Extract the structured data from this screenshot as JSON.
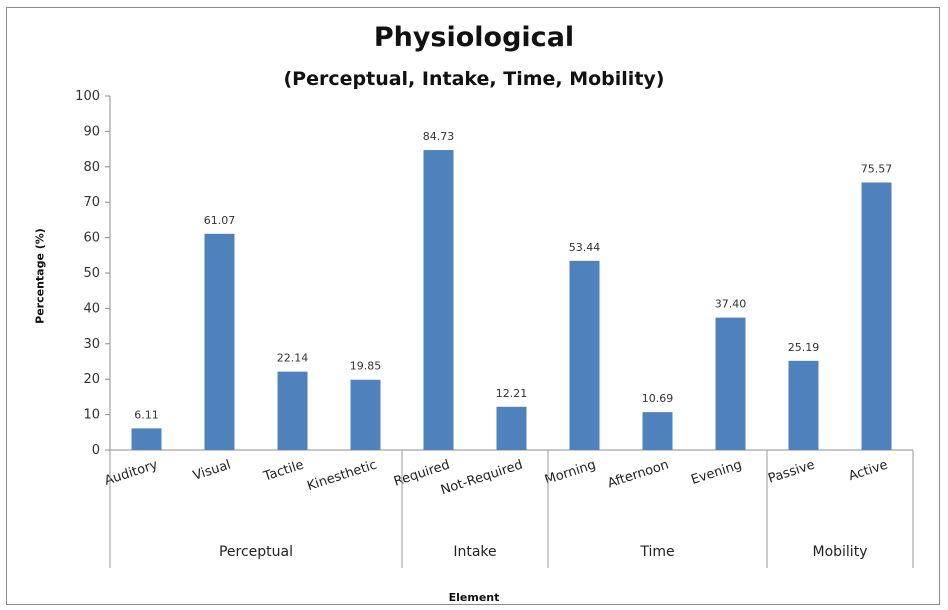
{
  "chart_data": {
    "type": "bar",
    "title": "Physiological",
    "subtitle": "(Perceptual, Intake, Time, Mobility)",
    "xlabel": "Element",
    "ylabel": "Percentage (%)",
    "ylim": [
      0,
      100
    ],
    "yticks": [
      0,
      10,
      20,
      30,
      40,
      50,
      60,
      70,
      80,
      90,
      100
    ],
    "grid": false,
    "legend": "none",
    "bar_color": "#4f81bd",
    "categories": [
      "Auditory",
      "Visual",
      "Tactile",
      "Kinesthetic",
      "Required",
      "Not-Required",
      "Morning",
      "Afternoon",
      "Evening",
      "Passive",
      "Active"
    ],
    "values": [
      6.11,
      61.07,
      22.14,
      19.85,
      84.73,
      12.21,
      53.44,
      10.69,
      37.4,
      25.19,
      75.57
    ],
    "value_labels": [
      "6.11",
      "61.07",
      "22.14",
      "19.85",
      "84.73",
      "12.21",
      "53.44",
      "10.69",
      "37.40",
      "25.19",
      "75.57"
    ],
    "groups": [
      {
        "label": "Perceptual",
        "count": 4
      },
      {
        "label": "Intake",
        "count": 2
      },
      {
        "label": "Time",
        "count": 3
      },
      {
        "label": "Mobility",
        "count": 2
      }
    ]
  }
}
